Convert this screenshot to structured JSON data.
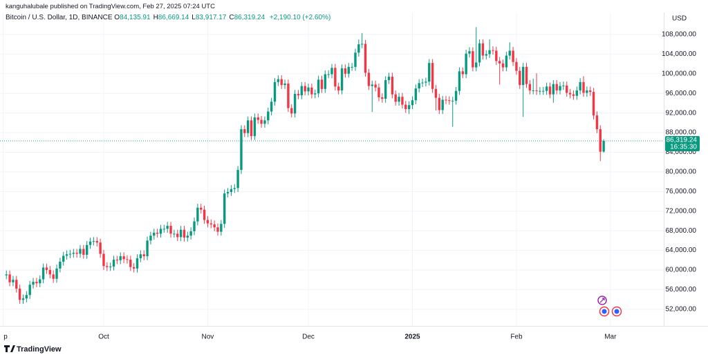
{
  "header": {
    "publisher": "kanguhalubale published on TradingView.com, Feb 27, 2025 07:24 UTC"
  },
  "footer": {
    "brand": "TradingView"
  },
  "chart_data": {
    "type": "candlestick",
    "title": "Bitcoin / U.S. Dollar, 1D, BINANCE",
    "ohlc_legend": [
      {
        "key": "O",
        "value": "84,135.91"
      },
      {
        "key": "H",
        "value": "86,669.14"
      },
      {
        "key": "L",
        "value": "83,917.17"
      },
      {
        "key": "C",
        "value": "86,319.24"
      }
    ],
    "change": "+2,190.10 (+2.60%)",
    "axis_unit": "USD",
    "last_price_label": "86,319.24",
    "countdown": "16:35:30",
    "up_color": "#089981",
    "down_color": "#f23645",
    "grid": true,
    "xlim": [
      -1.9,
      195.9
    ],
    "xticks": [
      {
        "value": -1,
        "label": "p"
      },
      {
        "value": 29,
        "label": "Oct"
      },
      {
        "value": 60,
        "label": "Nov"
      },
      {
        "value": 90,
        "label": "Dec"
      },
      {
        "value": 121,
        "label": "2025"
      },
      {
        "value": 152,
        "label": "Feb"
      },
      {
        "value": 180,
        "label": "Mar"
      }
    ],
    "ylim": [
      48600,
      112500
    ],
    "yticks": [
      {
        "value": 52000,
        "label": "52,000.00"
      },
      {
        "value": 56000,
        "label": "56,000.00"
      },
      {
        "value": 60000,
        "label": "60,000.00"
      },
      {
        "value": 64000,
        "label": "64,000.00"
      },
      {
        "value": 68000,
        "label": "68,000.00"
      },
      {
        "value": 72000,
        "label": "72,000.00"
      },
      {
        "value": 76000,
        "label": "76,000.00"
      },
      {
        "value": 80000,
        "label": "80,000.00"
      },
      {
        "value": 84000,
        "label": "84,000.00"
      },
      {
        "value": 88000,
        "label": "88,000.00"
      },
      {
        "value": 92000,
        "label": "92,000.00"
      },
      {
        "value": 96000,
        "label": "96,000.00"
      },
      {
        "value": 100000,
        "label": "100,000.00"
      },
      {
        "value": 104000,
        "label": "104,000.00"
      },
      {
        "value": 108000,
        "label": "108,000.00"
      }
    ],
    "open": [
      58900,
      59100,
      57500,
      58000,
      56200,
      53900,
      54200,
      54900,
      57000,
      57600,
      57300,
      58100,
      60500,
      60000,
      59100,
      58200,
      60300,
      61700,
      62900,
      63200,
      63300,
      63500,
      63300,
      64300,
      63100,
      65100,
      65800,
      65900,
      65600,
      63300,
      60800,
      60600,
      60700,
      62100,
      62000,
      62800,
      62200,
      62100,
      60600,
      60300,
      62400,
      63200,
      62800,
      66000,
      67000,
      67600,
      67400,
      68400,
      68400,
      69000,
      67400,
      67400,
      66700,
      68200,
      66600,
      67000,
      67900,
      69900,
      72700,
      72300,
      70200,
      69500,
      69300,
      68700,
      67800,
      69400,
      75600,
      75900,
      76500,
      76700,
      80400,
      88700,
      87900,
      90500,
      87300,
      91100,
      90600,
      89800,
      90500,
      92300,
      94300,
      98300,
      98900,
      97700,
      98000,
      93000,
      91900,
      95900,
      95600,
      97500,
      96400,
      97200,
      95800,
      96000,
      98800,
      96900,
      99900,
      99900,
      101200,
      97400,
      96600,
      101100,
      100000,
      101400,
      101400,
      104300,
      106000,
      106100,
      100200,
      97500,
      97800,
      97200,
      95200,
      94900,
      98700,
      99400,
      95800,
      94300,
      95300,
      93700,
      92800,
      93600,
      94600,
      97000,
      98100,
      98200,
      98400,
      102200,
      96900,
      95100,
      92600,
      94700,
      94600,
      94500,
      94500,
      96500,
      100500,
      99900,
      104100,
      104600,
      101300,
      102300,
      106200,
      103700,
      104000,
      104800,
      104700,
      102600,
      102100,
      101300,
      103700,
      104700,
      102400,
      100600,
      97700,
      101400,
      97900,
      96600,
      96600,
      96500,
      96500,
      96500,
      97400,
      95800,
      97900,
      96600,
      97500,
      97600,
      96100,
      95800,
      95500,
      96600,
      98300,
      96100,
      96600,
      96300,
      91500,
      88700,
      84135.91
    ],
    "high": [
      59900,
      59900,
      58800,
      58800,
      57000,
      55000,
      55700,
      57800,
      58400,
      58400,
      58900,
      61300,
      61300,
      60800,
      59900,
      61100,
      62500,
      63700,
      64000,
      64100,
      64300,
      64300,
      65100,
      65100,
      65900,
      66600,
      66700,
      66700,
      66400,
      64100,
      61600,
      61500,
      62900,
      62900,
      63600,
      63600,
      63000,
      62900,
      61400,
      63200,
      64000,
      64000,
      66800,
      67800,
      68400,
      68400,
      69200,
      69200,
      69800,
      69800,
      68200,
      68200,
      69000,
      69000,
      67800,
      68700,
      70700,
      73500,
      73500,
      73100,
      71000,
      70300,
      70100,
      69500,
      70200,
      76400,
      76700,
      77300,
      77500,
      81200,
      89500,
      89500,
      91300,
      91300,
      91900,
      91900,
      91400,
      91300,
      93100,
      95100,
      99100,
      99700,
      99700,
      98800,
      98800,
      93800,
      96700,
      96700,
      98300,
      98300,
      98000,
      98000,
      96800,
      99600,
      99600,
      100700,
      100700,
      102000,
      102000,
      98200,
      101900,
      101900,
      102200,
      102200,
      105100,
      107000,
      108300,
      106900,
      101000,
      98600,
      98600,
      98000,
      96000,
      99500,
      100200,
      100200,
      96600,
      96100,
      96100,
      94500,
      94400,
      95400,
      97800,
      98900,
      99000,
      99200,
      103000,
      103000,
      97700,
      95900,
      95500,
      95500,
      95400,
      95300,
      97300,
      101300,
      101300,
      104900,
      105400,
      105400,
      109500,
      107000,
      107000,
      104800,
      107000,
      105600,
      105500,
      103400,
      102900,
      104500,
      106400,
      105500,
      103200,
      101400,
      102200,
      102200,
      98700,
      99000,
      100100,
      97300,
      97300,
      98200,
      98200,
      98700,
      98700,
      98300,
      98400,
      98400,
      96900,
      96600,
      97400,
      99100,
      99500,
      97400,
      97400,
      97100,
      92300,
      89500,
      86669.14
    ],
    "low": [
      58100,
      56700,
      56700,
      55400,
      53100,
      53100,
      53400,
      54100,
      56200,
      56500,
      56500,
      57300,
      59200,
      58300,
      57400,
      57400,
      59500,
      60900,
      62100,
      62400,
      62500,
      62500,
      62500,
      62300,
      62300,
      64300,
      65000,
      64800,
      62500,
      60000,
      59800,
      59800,
      59900,
      61200,
      61200,
      61400,
      61300,
      59800,
      59500,
      59500,
      61600,
      62000,
      62000,
      65200,
      66200,
      66600,
      66600,
      67600,
      67600,
      66600,
      66600,
      65900,
      65900,
      65800,
      65800,
      66200,
      67100,
      69100,
      71500,
      69400,
      68700,
      68500,
      67900,
      67000,
      67000,
      68600,
      74800,
      75100,
      75700,
      75900,
      79600,
      87100,
      87100,
      86500,
      86500,
      89800,
      89000,
      89000,
      89700,
      91500,
      93500,
      97500,
      96900,
      96900,
      92200,
      91100,
      91100,
      94800,
      94800,
      95600,
      95600,
      95000,
      95000,
      95200,
      96100,
      96100,
      99100,
      99100,
      96600,
      95800,
      95800,
      99200,
      99200,
      100600,
      100600,
      103500,
      105200,
      99400,
      96700,
      92200,
      96400,
      94400,
      94100,
      94100,
      97900,
      95000,
      93500,
      93500,
      92900,
      92000,
      91800,
      92800,
      93800,
      96200,
      97300,
      97400,
      97600,
      96100,
      92500,
      91800,
      91800,
      93800,
      93700,
      89200,
      93700,
      95700,
      99100,
      99100,
      103300,
      100500,
      100500,
      101500,
      102900,
      102900,
      103200,
      103900,
      101800,
      97800,
      100500,
      100500,
      102900,
      101600,
      99800,
      96900,
      91200,
      97100,
      95800,
      95800,
      95700,
      95700,
      95700,
      95700,
      95000,
      94100,
      95800,
      95800,
      96700,
      95300,
      95000,
      94700,
      94700,
      95800,
      95300,
      95300,
      95500,
      90700,
      87900,
      82200,
      83917.17
    ],
    "close": [
      59100,
      57500,
      58000,
      56200,
      53900,
      54200,
      54900,
      57000,
      57600,
      57300,
      58100,
      60500,
      60000,
      59100,
      58200,
      60300,
      61700,
      62900,
      63200,
      63300,
      63500,
      63300,
      64300,
      63100,
      65100,
      65800,
      65900,
      65600,
      63300,
      60800,
      60600,
      60700,
      62100,
      62000,
      62800,
      62200,
      62100,
      60600,
      60300,
      62400,
      63200,
      62800,
      66000,
      67000,
      67600,
      67400,
      68400,
      68400,
      69000,
      67400,
      67400,
      66700,
      68200,
      66600,
      67000,
      67900,
      69900,
      72700,
      72300,
      70200,
      69500,
      69300,
      68700,
      67800,
      69400,
      75600,
      75900,
      76500,
      76700,
      80400,
      88700,
      87900,
      90500,
      87300,
      91100,
      90600,
      89800,
      90500,
      92300,
      94300,
      98300,
      98900,
      97700,
      98000,
      93000,
      91900,
      95900,
      95600,
      97500,
      96400,
      97200,
      95800,
      96000,
      98800,
      96900,
      99900,
      99900,
      101200,
      97400,
      96600,
      101100,
      100000,
      101400,
      101400,
      104300,
      106000,
      106100,
      100200,
      97500,
      97800,
      97200,
      95200,
      94900,
      98700,
      99400,
      95800,
      94300,
      95300,
      93700,
      92800,
      93600,
      94600,
      97000,
      98100,
      98200,
      98400,
      102200,
      96900,
      95100,
      92600,
      94700,
      94600,
      94500,
      94500,
      96500,
      100500,
      99900,
      104100,
      104600,
      101300,
      102300,
      106200,
      103700,
      104000,
      104800,
      104700,
      102600,
      102100,
      101300,
      103700,
      104700,
      102400,
      100600,
      97700,
      101400,
      97900,
      96600,
      96600,
      96500,
      96500,
      96500,
      97400,
      95800,
      97900,
      96600,
      97500,
      97600,
      96100,
      95800,
      95500,
      96600,
      98300,
      96100,
      96600,
      96300,
      91500,
      88700,
      84100,
      86319.24
    ]
  }
}
